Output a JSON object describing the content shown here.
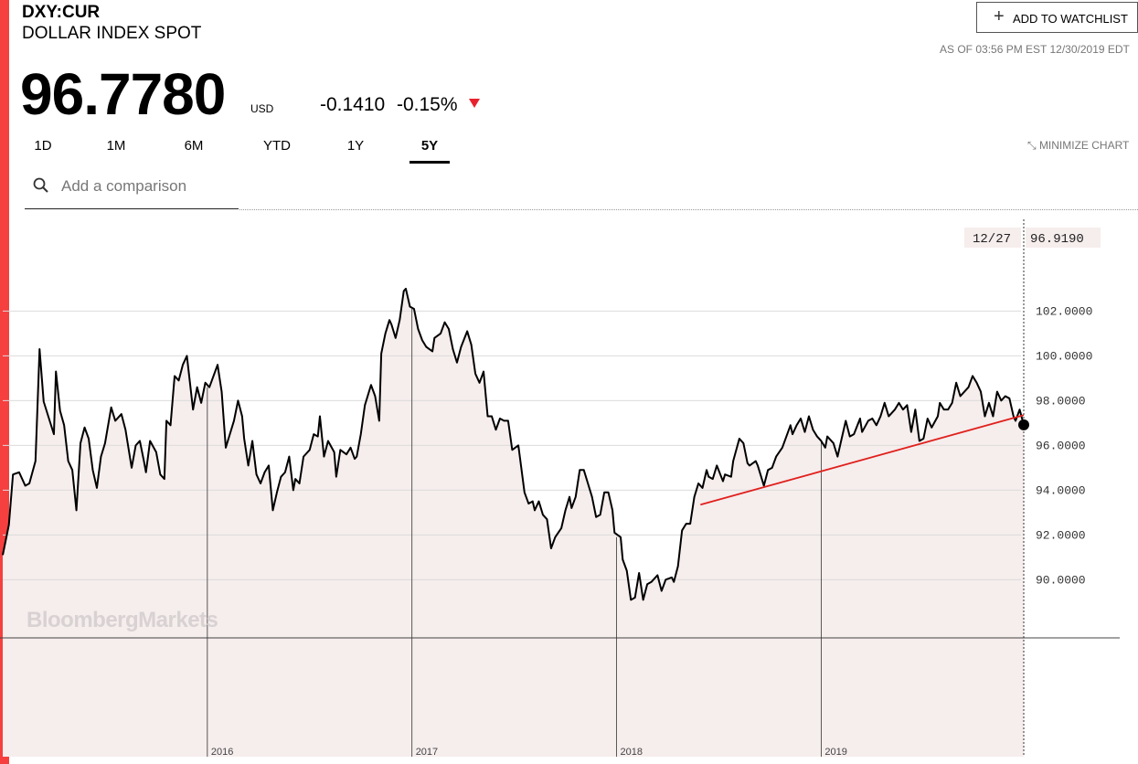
{
  "header": {
    "ticker": "DXY:CUR",
    "name": "DOLLAR INDEX SPOT",
    "price": "96.7780",
    "currency": "USD",
    "change": "-0.1410",
    "change_pct": "-0.15%",
    "watchlist_button": "ADD TO WATCHLIST",
    "as_of": "AS OF 03:56 PM EST 12/30/2019 EDT"
  },
  "tabs": {
    "items": [
      "1D",
      "1M",
      "6M",
      "YTD",
      "1Y",
      "5Y"
    ],
    "active": "5Y",
    "minimize": "MINIMIZE CHART"
  },
  "comparison": {
    "placeholder": "Add a comparison"
  },
  "watermark": "BloombergMarkets",
  "chart_data": {
    "type": "line",
    "color": "#000000",
    "fill": "#f6eded",
    "x": [
      2015.0,
      2015.03,
      2015.05,
      2015.08,
      2015.11,
      2015.13,
      2015.16,
      2015.18,
      2015.2,
      2015.25,
      2015.26,
      2015.28,
      2015.3,
      2015.32,
      2015.34,
      2015.36,
      2015.38,
      2015.4,
      2015.42,
      2015.44,
      2015.46,
      2015.48,
      2015.5,
      2015.53,
      2015.55,
      2015.58,
      2015.6,
      2015.63,
      2015.65,
      2015.67,
      2015.69,
      2015.7,
      2015.72,
      2015.75,
      2015.77,
      2015.79,
      2015.8,
      2015.82,
      2015.84,
      2015.86,
      2015.88,
      2015.9,
      2015.92,
      2015.93,
      2015.95,
      2015.97,
      2015.99,
      2016.01,
      2016.03,
      2016.05,
      2016.07,
      2016.09,
      2016.11,
      2016.13,
      2016.15,
      2016.17,
      2016.18,
      2016.2,
      2016.22,
      2016.24,
      2016.26,
      2016.28,
      2016.3,
      2016.32,
      2016.34,
      2016.36,
      2016.38,
      2016.4,
      2016.42,
      2016.43,
      2016.45,
      2016.47,
      2016.5,
      2016.52,
      2016.54,
      2016.55,
      2016.57,
      2016.59,
      2016.62,
      2016.63,
      2016.65,
      2016.68,
      2016.7,
      2016.72,
      2016.73,
      2016.75,
      2016.77,
      2016.8,
      2016.82,
      2016.84,
      2016.85,
      2016.87,
      2016.89,
      2016.9,
      2016.92,
      2016.94,
      2016.96,
      2016.97,
      2016.99,
      2017.01,
      2017.03,
      2017.05,
      2017.07,
      2017.1,
      2017.11,
      2017.14,
      2017.16,
      2017.18,
      2017.2,
      2017.22,
      2017.24,
      2017.27,
      2017.29,
      2017.31,
      2017.33,
      2017.35,
      2017.37,
      2017.39,
      2017.41,
      2017.43,
      2017.45,
      2017.47,
      2017.49,
      2017.52,
      2017.53,
      2017.55,
      2017.57,
      2017.59,
      2017.6,
      2017.62,
      2017.64,
      2017.66,
      2017.68,
      2017.7,
      2017.73,
      2017.75,
      2017.77,
      2017.78,
      2017.8,
      2017.82,
      2017.84,
      2017.86,
      2017.88,
      2017.9,
      2017.92,
      2017.94,
      2017.96,
      2017.98,
      2017.99,
      2018.02,
      2018.03,
      2018.05,
      2018.07,
      2018.09,
      2018.11,
      2018.13,
      2018.15,
      2018.17,
      2018.2,
      2018.22,
      2018.24,
      2018.27,
      2018.28,
      2018.3,
      2018.32,
      2018.34,
      2018.36,
      2018.38,
      2018.4,
      2018.42,
      2018.44,
      2018.45,
      2018.47,
      2018.49,
      2018.52,
      2018.53,
      2018.56,
      2018.57,
      2018.6,
      2018.62,
      2018.64,
      2018.65,
      2018.68,
      2018.69,
      2018.72,
      2018.74,
      2018.76,
      2018.78,
      2018.81,
      2018.83,
      2018.85,
      2018.86,
      2018.88,
      2018.9,
      2018.92,
      2018.94,
      2018.96,
      2018.98,
      2019.0,
      2019.02,
      2019.03,
      2019.06,
      2019.08,
      2019.1,
      2019.12,
      2019.14,
      2019.16,
      2019.19,
      2019.2,
      2019.23,
      2019.25,
      2019.27,
      2019.29,
      2019.31,
      2019.33,
      2019.36,
      2019.38,
      2019.4,
      2019.42,
      2019.44,
      2019.46,
      2019.48,
      2019.5,
      2019.52,
      2019.54,
      2019.57,
      2019.58,
      2019.6,
      2019.62,
      2019.64,
      2019.66,
      2019.68,
      2019.7,
      2019.72,
      2019.74,
      2019.76,
      2019.78,
      2019.8,
      2019.82,
      2019.84,
      2019.86,
      2019.88,
      2019.9,
      2019.92,
      2019.94,
      2019.95,
      2019.97,
      2019.99
    ],
    "values": [
      91.1,
      92.45,
      94.7,
      94.8,
      94.2,
      94.3,
      95.3,
      100.3,
      97.96,
      96.5,
      99.3,
      97.55,
      96.9,
      95.3,
      94.9,
      93.1,
      96.1,
      96.8,
      96.3,
      94.9,
      94.1,
      95.5,
      96.1,
      97.7,
      97.1,
      97.4,
      96.7,
      95.0,
      96.0,
      96.2,
      95.3,
      94.8,
      96.2,
      95.7,
      94.7,
      94.5,
      97.1,
      96.9,
      99.1,
      98.9,
      99.6,
      100.0,
      98.4,
      97.6,
      98.6,
      97.9,
      98.8,
      98.6,
      99.1,
      99.6,
      98.4,
      95.9,
      96.5,
      97.1,
      98.0,
      97.3,
      96.3,
      95.1,
      96.2,
      94.7,
      94.3,
      94.8,
      95.1,
      93.1,
      93.9,
      94.6,
      94.8,
      95.5,
      94.0,
      94.5,
      94.3,
      95.5,
      95.8,
      96.5,
      96.4,
      97.3,
      95.5,
      96.2,
      95.7,
      94.6,
      95.8,
      95.6,
      95.9,
      95.4,
      95.5,
      96.5,
      97.8,
      98.7,
      98.2,
      97.1,
      100.1,
      101.0,
      101.6,
      101.4,
      100.8,
      101.6,
      102.9,
      103.0,
      102.2,
      102.1,
      101.2,
      100.7,
      100.4,
      100.2,
      100.8,
      101.0,
      101.5,
      101.2,
      100.3,
      99.7,
      100.4,
      101.1,
      100.5,
      99.2,
      98.8,
      99.3,
      97.3,
      97.3,
      96.7,
      97.2,
      97.1,
      97.1,
      95.8,
      96.0,
      95.3,
      93.9,
      93.4,
      93.5,
      93.1,
      93.5,
      92.9,
      92.7,
      91.4,
      91.9,
      92.3,
      93.1,
      93.7,
      93.2,
      93.7,
      94.9,
      94.9,
      94.3,
      93.7,
      92.8,
      92.9,
      93.9,
      93.9,
      93.1,
      92.1,
      91.9,
      90.9,
      90.4,
      89.1,
      89.2,
      90.3,
      89.1,
      89.8,
      89.9,
      90.2,
      89.5,
      90.0,
      90.1,
      89.9,
      90.6,
      92.2,
      92.5,
      92.5,
      93.7,
      94.3,
      94.1,
      94.9,
      94.6,
      94.5,
      95.1,
      94.4,
      94.7,
      94.6,
      95.3,
      96.3,
      96.1,
      95.2,
      95.1,
      95.3,
      95.1,
      94.2,
      94.9,
      95.0,
      95.5,
      95.9,
      96.4,
      96.9,
      96.5,
      96.9,
      97.2,
      96.6,
      97.3,
      96.7,
      96.4,
      96.2,
      95.9,
      96.4,
      96.1,
      95.5,
      96.3,
      97.1,
      96.4,
      96.5,
      97.2,
      96.6,
      97.1,
      97.2,
      96.9,
      97.3,
      97.9,
      97.3,
      97.6,
      97.9,
      97.6,
      97.8,
      96.6,
      97.6,
      96.2,
      96.3,
      97.2,
      96.8,
      97.3,
      97.9,
      97.6,
      97.6,
      97.9,
      98.8,
      98.2,
      98.4,
      98.6,
      99.1,
      98.8,
      98.4,
      97.3,
      97.9,
      97.3,
      98.4,
      98.0,
      98.2,
      98.1,
      97.3,
      97.1,
      97.6,
      96.919
    ],
    "xlim": [
      2015.0,
      2019.99
    ],
    "ylim": [
      87.4,
      106.1
    ],
    "xticks": [
      2016,
      2017,
      2018,
      2019
    ],
    "yticks": [
      {
        "value": 90,
        "label": "90.0000"
      },
      {
        "value": 92,
        "label": "92.0000"
      },
      {
        "value": 94,
        "label": "94.0000"
      },
      {
        "value": 96,
        "label": "96.0000"
      },
      {
        "value": 98,
        "label": "98.0000"
      },
      {
        "value": 100,
        "label": "100.0000"
      },
      {
        "value": 102,
        "label": "102.0000"
      }
    ],
    "grid": true,
    "trendline": {
      "color": "#e0201c",
      "x": [
        2018.41,
        2019.99
      ],
      "values": [
        93.35,
        97.35
      ]
    },
    "crosshair": {
      "date_label": "12/27",
      "value_label": "96.9190"
    }
  }
}
